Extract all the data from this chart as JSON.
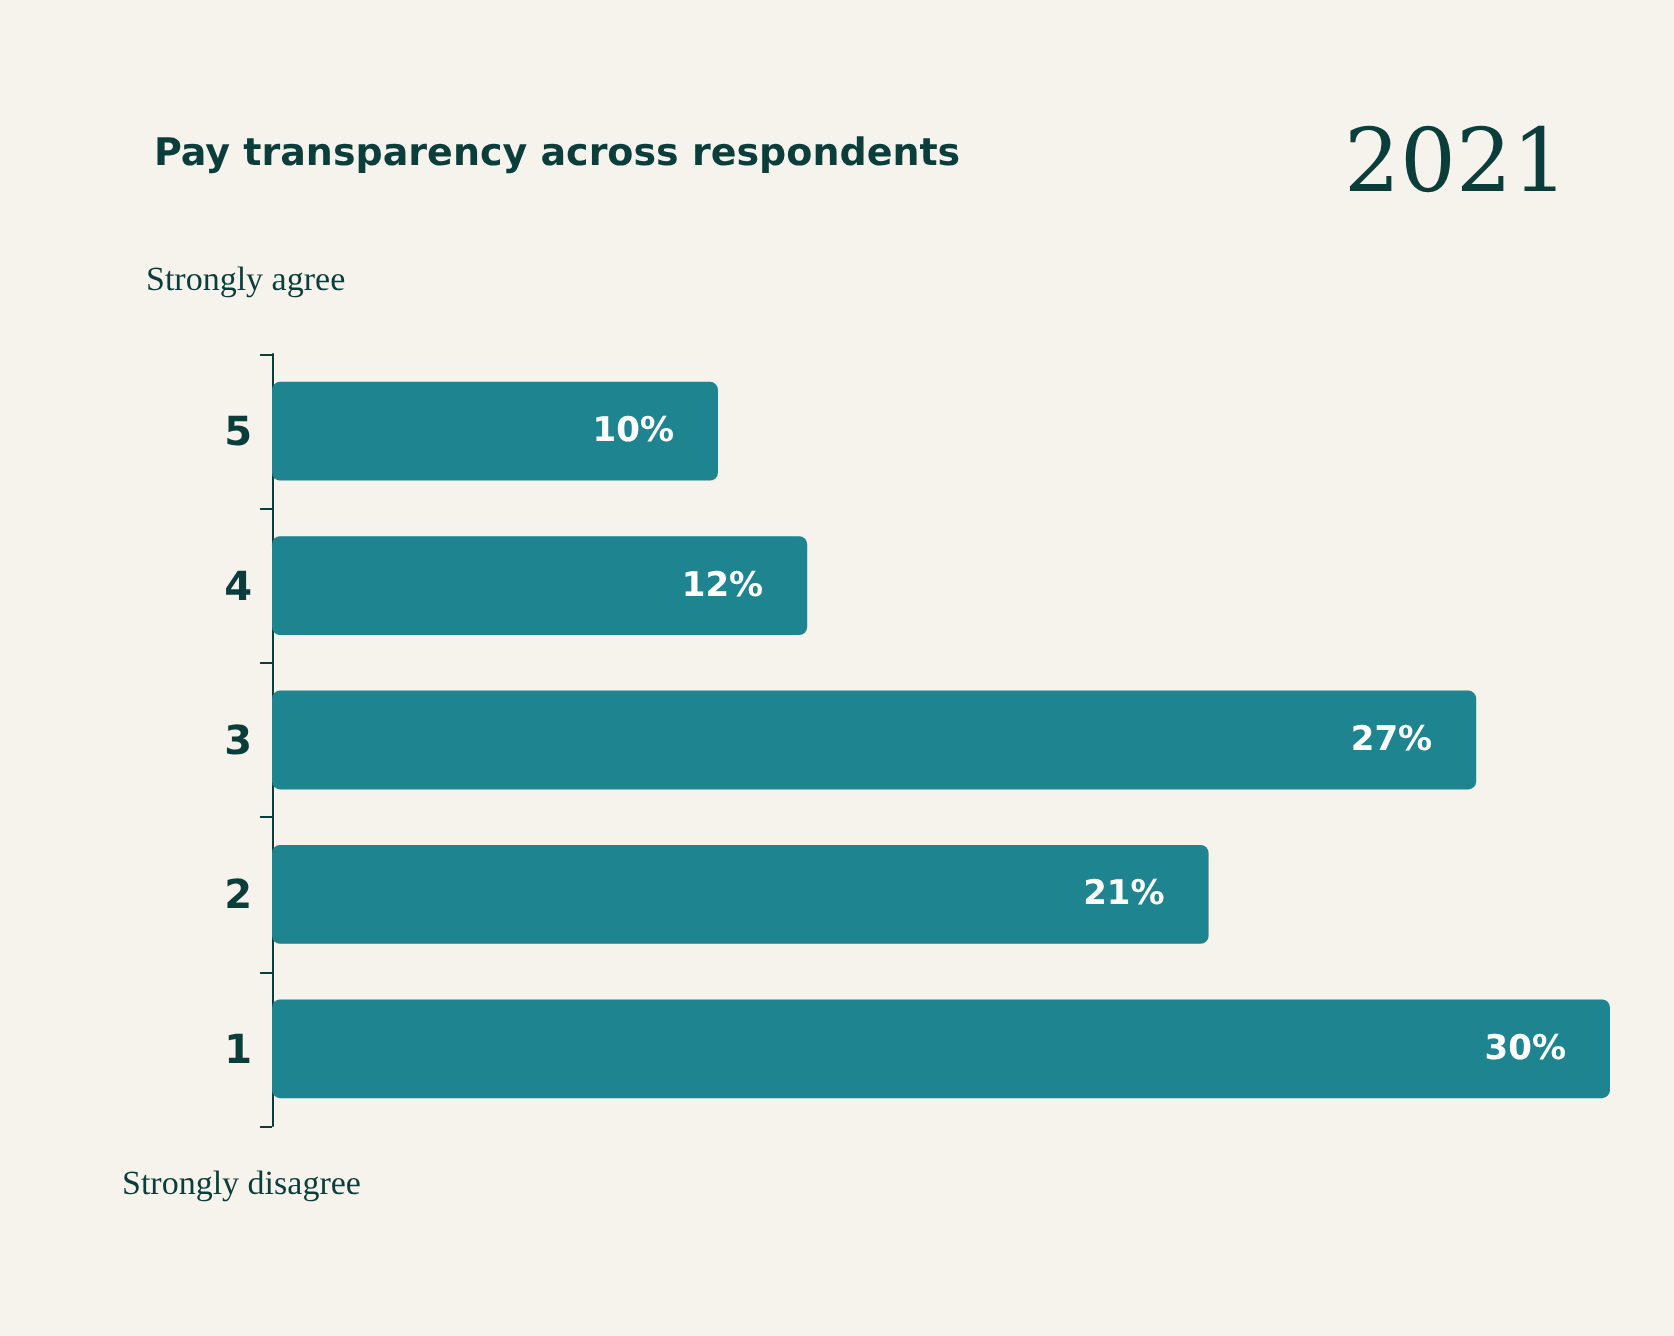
{
  "chart_data": {
    "type": "bar",
    "orientation": "horizontal",
    "title": "Pay transparency across respondents",
    "subtitle": "2021",
    "categories": [
      "5",
      "4",
      "3",
      "2",
      "1"
    ],
    "values": [
      10,
      12,
      27,
      21,
      30
    ],
    "value_labels": [
      "10%",
      "12%",
      "27%",
      "21%",
      "30%"
    ],
    "color": "#1e8590",
    "annotations": [
      "Strongly agree",
      "Strongly disagree"
    ]
  }
}
